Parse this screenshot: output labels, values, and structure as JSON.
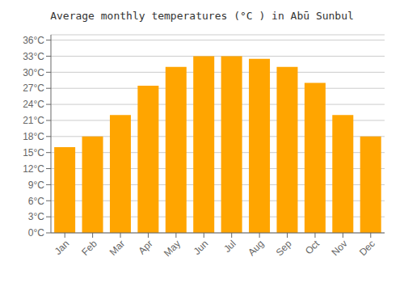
{
  "chart_data": {
    "type": "bar",
    "title": "Average monthly temperatures (°C ) in Abū Sunbul",
    "categories": [
      "Jan",
      "Feb",
      "Mar",
      "Apr",
      "May",
      "Jun",
      "Jul",
      "Aug",
      "Sep",
      "Oct",
      "Nov",
      "Dec"
    ],
    "values": [
      16,
      18,
      22,
      27.5,
      31,
      33,
      33,
      32.5,
      31,
      28,
      22,
      18
    ],
    "color": "#FFA500",
    "ylim": [
      0,
      37
    ],
    "yticks": [
      {
        "value": 0,
        "label": "0°C"
      },
      {
        "value": 3,
        "label": "3°C"
      },
      {
        "value": 6,
        "label": "6°C"
      },
      {
        "value": 9,
        "label": "9°C"
      },
      {
        "value": 12,
        "label": "12°C"
      },
      {
        "value": 15,
        "label": "15°C"
      },
      {
        "value": 18,
        "label": "18°C"
      },
      {
        "value": 21,
        "label": "21°C"
      },
      {
        "value": 24,
        "label": "24°C"
      },
      {
        "value": 27,
        "label": "27°C"
      },
      {
        "value": 30,
        "label": "30°C"
      },
      {
        "value": 33,
        "label": "33°C"
      },
      {
        "value": 36,
        "label": "36°C"
      }
    ],
    "grid": true
  }
}
